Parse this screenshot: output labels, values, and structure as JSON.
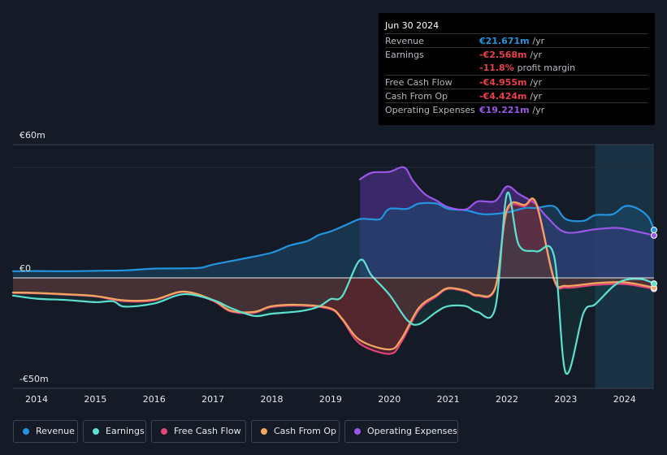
{
  "chart_data": {
    "type": "area",
    "ylim": [
      -50,
      60
    ],
    "y_axis_labels": [
      "€60m",
      "€0",
      "-€50m"
    ],
    "x_ticks": [
      "2014",
      "2015",
      "2016",
      "2017",
      "2018",
      "2019",
      "2020",
      "2021",
      "2022",
      "2023",
      "2024"
    ],
    "x_range": [
      2013.6,
      2024.5
    ],
    "forecast_start": 2023.5,
    "series": [
      {
        "name": "Revenue",
        "key": "revenue",
        "color": "#2394df",
        "points": [
          [
            2013.6,
            3
          ],
          [
            2014,
            3.1
          ],
          [
            2014.5,
            3
          ],
          [
            2015,
            3.2
          ],
          [
            2015.5,
            3.4
          ],
          [
            2016,
            4.2
          ],
          [
            2016.5,
            4.3
          ],
          [
            2016.8,
            4.6
          ],
          [
            2017,
            6
          ],
          [
            2017.5,
            8.6
          ],
          [
            2018,
            11.4
          ],
          [
            2018.3,
            14.6
          ],
          [
            2018.6,
            16.6
          ],
          [
            2018.8,
            19.4
          ],
          [
            2019,
            21
          ],
          [
            2019.3,
            24.4
          ],
          [
            2019.5,
            26.6
          ],
          [
            2019.7,
            26.5
          ],
          [
            2019.85,
            26.7
          ],
          [
            2020,
            31.2
          ],
          [
            2020.3,
            31.2
          ],
          [
            2020.5,
            33.6
          ],
          [
            2020.8,
            33.6
          ],
          [
            2021,
            31.2
          ],
          [
            2021.3,
            30.6
          ],
          [
            2021.6,
            28.8
          ],
          [
            2022,
            29.6
          ],
          [
            2022.3,
            31.6
          ],
          [
            2022.5,
            31.6
          ],
          [
            2022.8,
            32.4
          ],
          [
            2023,
            26.6
          ],
          [
            2023.3,
            25.8
          ],
          [
            2023.5,
            28.4
          ],
          [
            2023.8,
            28.8
          ],
          [
            2024,
            32.4
          ],
          [
            2024.2,
            31.6
          ],
          [
            2024.4,
            27.6
          ],
          [
            2024.5,
            21.7
          ]
        ]
      },
      {
        "name": "Earnings",
        "key": "earnings",
        "color": "#5ce0cf",
        "points": [
          [
            2013.6,
            -8
          ],
          [
            2014,
            -9.4
          ],
          [
            2014.5,
            -10
          ],
          [
            2015,
            -11
          ],
          [
            2015.3,
            -10.6
          ],
          [
            2015.5,
            -13
          ],
          [
            2016,
            -11.6
          ],
          [
            2016.5,
            -7.4
          ],
          [
            2017,
            -10
          ],
          [
            2017.3,
            -13.6
          ],
          [
            2017.7,
            -17.2
          ],
          [
            2018,
            -16.2
          ],
          [
            2018.5,
            -15
          ],
          [
            2018.8,
            -13
          ],
          [
            2019,
            -9.6
          ],
          [
            2019.2,
            -8.2
          ],
          [
            2019.5,
            8
          ],
          [
            2019.7,
            1
          ],
          [
            2020,
            -7.6
          ],
          [
            2020.3,
            -19
          ],
          [
            2020.5,
            -21
          ],
          [
            2020.8,
            -15.4
          ],
          [
            2021,
            -12.8
          ],
          [
            2021.3,
            -12.8
          ],
          [
            2021.5,
            -15.4
          ],
          [
            2021.8,
            -13.6
          ],
          [
            2022,
            38
          ],
          [
            2022.2,
            15
          ],
          [
            2022.5,
            12
          ],
          [
            2022.8,
            10
          ],
          [
            2023,
            -43
          ],
          [
            2023.3,
            -16
          ],
          [
            2023.5,
            -12
          ],
          [
            2023.8,
            -4
          ],
          [
            2024,
            -1
          ],
          [
            2024.3,
            -0.6
          ],
          [
            2024.5,
            -2.6
          ]
        ]
      },
      {
        "name": "Free Cash Flow",
        "key": "fcf",
        "color": "#e0457b",
        "points": [
          [
            2013.6,
            -6.8
          ],
          [
            2014,
            -7
          ],
          [
            2014.5,
            -7.6
          ],
          [
            2015,
            -8.4
          ],
          [
            2015.5,
            -10.6
          ],
          [
            2016,
            -10.2
          ],
          [
            2016.5,
            -6.4
          ],
          [
            2017,
            -10.4
          ],
          [
            2017.3,
            -15.2
          ],
          [
            2017.7,
            -15.8
          ],
          [
            2018,
            -13.2
          ],
          [
            2018.5,
            -12.6
          ],
          [
            2019,
            -14.2
          ],
          [
            2019.2,
            -19
          ],
          [
            2019.5,
            -29.8
          ],
          [
            2020,
            -34.4
          ],
          [
            2020.2,
            -29.2
          ],
          [
            2020.5,
            -14.6
          ],
          [
            2020.8,
            -8.4
          ],
          [
            2021,
            -5
          ],
          [
            2021.3,
            -6.2
          ],
          [
            2021.5,
            -8.2
          ],
          [
            2021.8,
            -4.8
          ],
          [
            2022,
            30
          ],
          [
            2022.3,
            32.4
          ],
          [
            2022.5,
            33
          ],
          [
            2022.8,
            -1
          ],
          [
            2023,
            -4.4
          ],
          [
            2023.5,
            -3.2
          ],
          [
            2024,
            -2.8
          ],
          [
            2024.5,
            -4.96
          ]
        ]
      },
      {
        "name": "Cash From Op",
        "key": "cfo",
        "color": "#f2a65e",
        "points": [
          [
            2013.6,
            -6.6
          ],
          [
            2014,
            -6.8
          ],
          [
            2014.5,
            -7.4
          ],
          [
            2015,
            -8.2
          ],
          [
            2015.5,
            -10.2
          ],
          [
            2016,
            -9.8
          ],
          [
            2016.5,
            -6.2
          ],
          [
            2017,
            -10
          ],
          [
            2017.3,
            -14.8
          ],
          [
            2017.7,
            -15.4
          ],
          [
            2018,
            -12.8
          ],
          [
            2018.5,
            -12.2
          ],
          [
            2019,
            -13.8
          ],
          [
            2019.2,
            -18.6
          ],
          [
            2019.5,
            -28.2
          ],
          [
            2020,
            -32.4
          ],
          [
            2020.2,
            -27.8
          ],
          [
            2020.5,
            -13.6
          ],
          [
            2020.8,
            -7.8
          ],
          [
            2021,
            -4.6
          ],
          [
            2021.3,
            -5.8
          ],
          [
            2021.5,
            -7.8
          ],
          [
            2021.8,
            -4.4
          ],
          [
            2022,
            31
          ],
          [
            2022.3,
            33
          ],
          [
            2022.5,
            33.6
          ],
          [
            2022.8,
            -0.4
          ],
          [
            2023,
            -3.6
          ],
          [
            2023.5,
            -2.4
          ],
          [
            2024,
            -2
          ],
          [
            2024.5,
            -4.42
          ]
        ]
      },
      {
        "name": "Operating Expenses",
        "key": "opex",
        "color": "#9a56e8",
        "points": [
          [
            2019.5,
            44.6
          ],
          [
            2019.7,
            47.6
          ],
          [
            2020,
            48
          ],
          [
            2020.25,
            50
          ],
          [
            2020.4,
            44
          ],
          [
            2020.6,
            38
          ],
          [
            2020.8,
            35
          ],
          [
            2021,
            32
          ],
          [
            2021.3,
            31
          ],
          [
            2021.5,
            34.6
          ],
          [
            2021.8,
            34.8
          ],
          [
            2022,
            41.4
          ],
          [
            2022.2,
            38
          ],
          [
            2022.4,
            35
          ],
          [
            2022.5,
            33
          ],
          [
            2022.7,
            27
          ],
          [
            2023,
            20.6
          ],
          [
            2023.5,
            22
          ],
          [
            2023.8,
            22.6
          ],
          [
            2024,
            22.2
          ],
          [
            2024.5,
            19.2
          ]
        ]
      }
    ]
  },
  "tooltip": {
    "date": "Jun 30 2024",
    "rows": [
      {
        "label": "Revenue",
        "value": "€21.671m",
        "unit": "/yr",
        "color": "#2394df"
      },
      {
        "label": "Earnings",
        "value": "-€2.568m",
        "unit": "/yr",
        "color": "#e8404a"
      },
      {
        "label": "",
        "value": "-11.8%",
        "unit": "profit margin",
        "color": "#e8404a"
      },
      {
        "label": "Free Cash Flow",
        "value": "-€4.955m",
        "unit": "/yr",
        "color": "#e8404a"
      },
      {
        "label": "Cash From Op",
        "value": "-€4.424m",
        "unit": "/yr",
        "color": "#e8404a"
      },
      {
        "label": "Operating Expenses",
        "value": "€19.221m",
        "unit": "/yr",
        "color": "#9a56e8"
      }
    ]
  },
  "legend": [
    {
      "label": "Revenue",
      "color": "#2394df"
    },
    {
      "label": "Earnings",
      "color": "#5ce0cf"
    },
    {
      "label": "Free Cash Flow",
      "color": "#e0457b"
    },
    {
      "label": "Cash From Op",
      "color": "#f2a65e"
    },
    {
      "label": "Operating Expenses",
      "color": "#9a56e8"
    }
  ]
}
